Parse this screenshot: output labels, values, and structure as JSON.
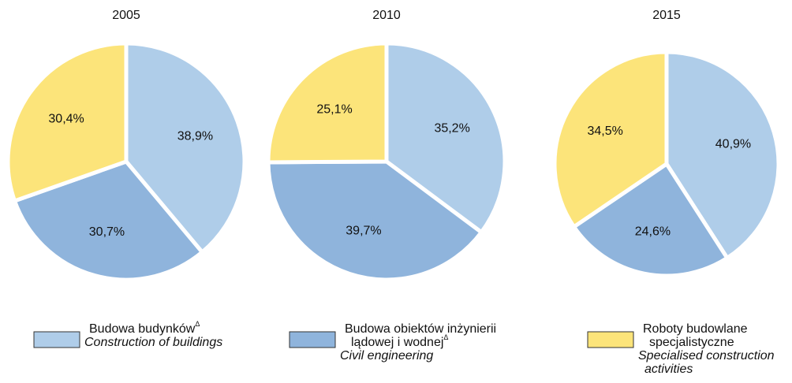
{
  "chart_data": [
    {
      "type": "pie",
      "title": "2005",
      "values": [
        38.9,
        30.7,
        30.4
      ],
      "value_labels": [
        "38,9%",
        "30,7%",
        "30,4%"
      ]
    },
    {
      "type": "pie",
      "title": "2010",
      "values": [
        35.2,
        39.7,
        25.1
      ],
      "value_labels": [
        "35,2%",
        "39,7%",
        "25,1%"
      ]
    },
    {
      "type": "pie",
      "title": "2015",
      "values": [
        40.9,
        24.6,
        34.5
      ],
      "value_labels": [
        "40,9%",
        "24,6%",
        "34,5%"
      ]
    }
  ],
  "legend": [
    {
      "name": [
        "Budowa budynków"
      ],
      "mark": "Δ",
      "name_en": [
        "Construction of buildings"
      ],
      "color": "#afcde9"
    },
    {
      "name": [
        "Budowa obiektów inżynierii",
        "lądowej i wodnej"
      ],
      "mark": "Δ",
      "name_en": [
        "Civil engineering"
      ],
      "color": "#8fb4dc"
    },
    {
      "name": [
        "Roboty budowlane",
        "specjalistyczne"
      ],
      "name_en": [
        "Specialised construction",
        "activities"
      ],
      "color": "#fce47a"
    }
  ]
}
